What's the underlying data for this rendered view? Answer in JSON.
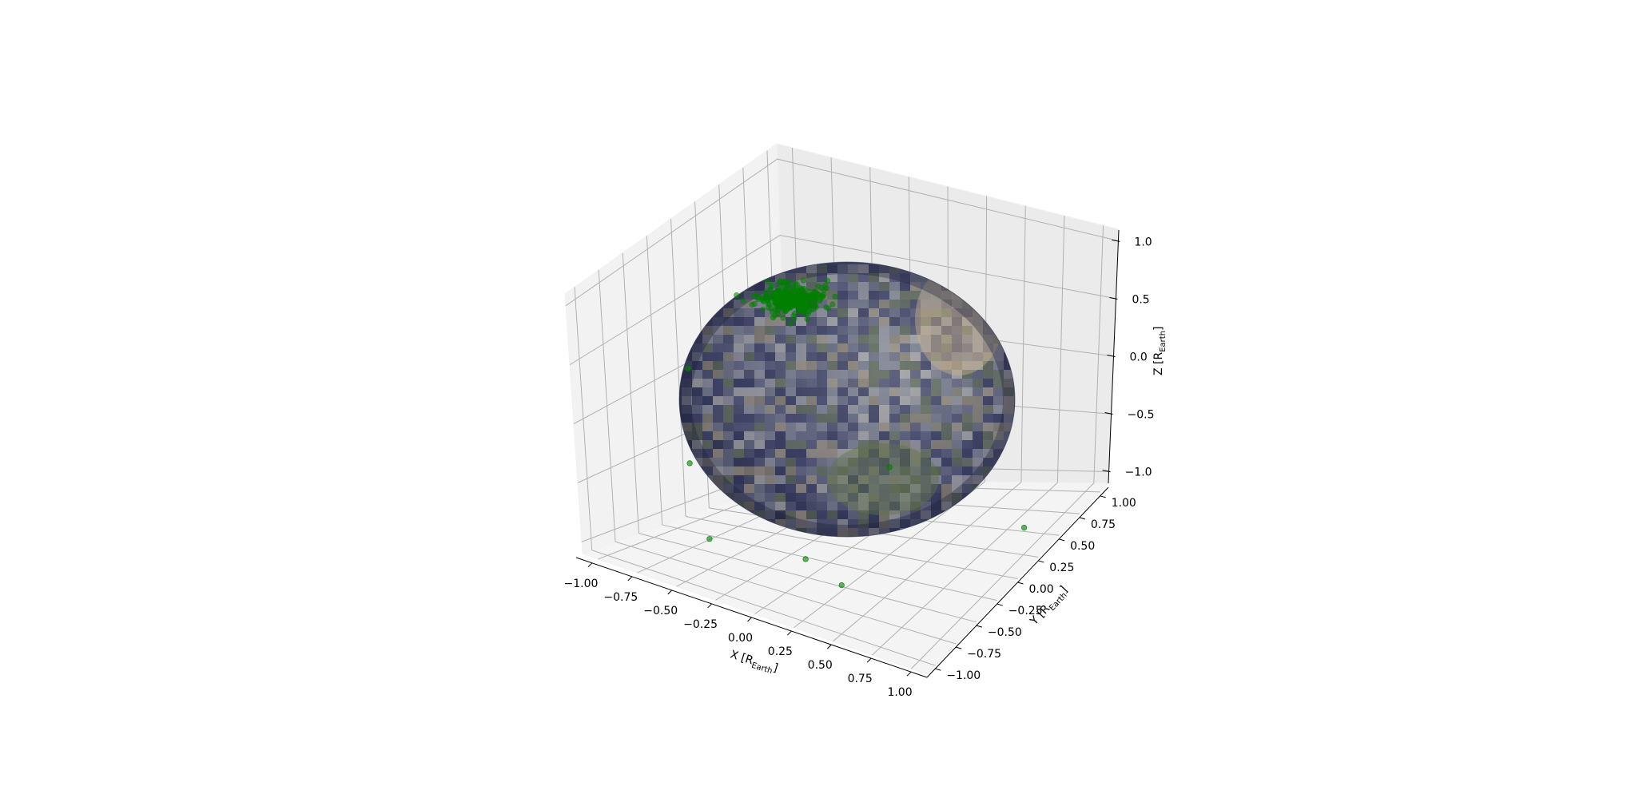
{
  "chart_data": {
    "type": "scatter",
    "projection": "3d",
    "background_surface": "earth-globe-texture",
    "xlabel": "X [R",
    "xlabel_sub": "Earth",
    "ylabel": "Y [R",
    "ylabel_sub": "Earth",
    "zlabel": "Z [R",
    "zlabel_sub": "Earth",
    "xlim": [
      -1.1,
      1.1
    ],
    "ylim": [
      -1.1,
      1.1
    ],
    "zlim": [
      -1.1,
      1.1
    ],
    "xticks": [
      "−1.00",
      "−0.75",
      "−0.50",
      "−0.25",
      "0.00",
      "0.25",
      "0.50",
      "0.75",
      "1.00"
    ],
    "xtick_values": [
      -1.0,
      -0.75,
      -0.5,
      -0.25,
      0.0,
      0.25,
      0.5,
      0.75,
      1.0
    ],
    "yticks": [
      "−1.00",
      "−0.75",
      "−0.50",
      "−0.25",
      "0.00",
      "0.25",
      "0.50",
      "0.75",
      "1.00"
    ],
    "ytick_values": [
      -1.0,
      -0.75,
      -0.5,
      -0.25,
      0.0,
      0.25,
      0.5,
      0.75,
      1.0
    ],
    "zticks": [
      "−1.0",
      "−0.5",
      "0.0",
      "0.5",
      "1.0"
    ],
    "ztick_values": [
      -1.0,
      -0.5,
      0.0,
      0.5,
      1.0
    ],
    "grid": true,
    "series": [
      {
        "marker_color": "#008000",
        "approx_count": 300,
        "cluster_center": {
          "x": -0.45,
          "y": 0.1,
          "z": 0.85
        },
        "outliers": [
          {
            "x": -0.9,
            "y": -0.3,
            "z": 0.3
          },
          {
            "x": 0.45,
            "y": -0.35,
            "z": -0.1
          },
          {
            "x": 0.95,
            "y": 0.35,
            "z": -0.95
          },
          {
            "x": -0.55,
            "y": -0.65,
            "z": -0.9
          },
          {
            "x": -0.1,
            "y": -0.35,
            "z": -1.05
          },
          {
            "x": 0.25,
            "y": -0.55,
            "z": -1.05
          },
          {
            "x": -0.95,
            "y": -0.2,
            "z": -0.55
          }
        ]
      }
    ]
  }
}
